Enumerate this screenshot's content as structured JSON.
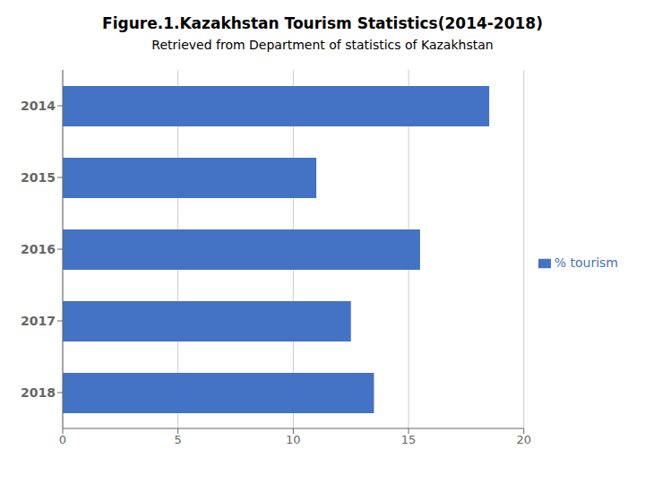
{
  "chart_data": {
    "type": "bar",
    "title": "Figure.1.Kazakhstan Tourism Statistics(2014-2018)",
    "subtitle": "Retrieved from Department of statistics of Kazakhstan",
    "orientation": "horizontal",
    "categories": [
      "2018",
      "2017",
      "2016",
      "2015",
      "2014"
    ],
    "series": [
      {
        "name": "% tourism",
        "color": "#4472C4",
        "values": [
          13.5,
          12.5,
          15.5,
          11.0,
          18.5
        ]
      }
    ],
    "xlim": [
      0,
      20
    ],
    "xticks": [
      0,
      5,
      10,
      15,
      20
    ],
    "grid": true,
    "legend": "right"
  }
}
